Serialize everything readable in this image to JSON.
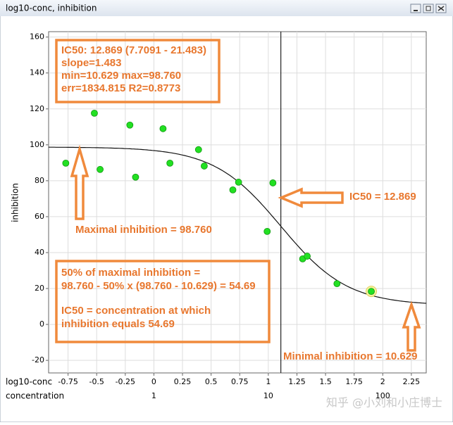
{
  "chart_data": {
    "type": "scatter",
    "title": "log10-conc, inhibition",
    "x_label": "log10-conc",
    "x2_label": "concentration",
    "y_label": "inhibition",
    "x": [
      -0.77,
      -0.52,
      -0.47,
      -0.21,
      -0.16,
      0.08,
      0.14,
      0.39,
      0.44,
      0.69,
      0.74,
      0.99,
      1.04,
      1.3,
      1.34,
      1.6,
      1.9
    ],
    "values": [
      89.8,
      117.6,
      86.3,
      111.0,
      82.0,
      109.0,
      89.8,
      97.3,
      88.2,
      74.9,
      79.2,
      51.8,
      78.8,
      36.5,
      38.0,
      22.7,
      18.4
    ],
    "color": "#22e022",
    "highlight": 16,
    "fit": {
      "ic50": 12.869,
      "slope": 1.483,
      "min": 10.629,
      "max": 98.76
    },
    "xlim": [
      -0.92,
      2.38
    ],
    "ylim": [
      -27,
      163
    ],
    "xticks": [
      -0.75,
      -0.5,
      -0.25,
      0,
      0.25,
      0.5,
      0.75,
      1,
      1.25,
      1.5,
      1.75,
      2,
      2.25
    ],
    "x2ticks": [
      {
        "value": 0,
        "label": "1"
      },
      {
        "value": 1,
        "label": "10"
      },
      {
        "value": 2,
        "label": "100"
      }
    ],
    "yticks": [
      -20,
      0,
      20,
      40,
      60,
      80,
      100,
      120,
      140,
      160
    ],
    "grid": true,
    "annotations": [
      "IC50: 12.869 (7.7091 - 21.483)",
      "slope=1.483",
      "min=10.629 max=98.760",
      "err=1834.815 R2=0.8773",
      "Maximal inhibition = 98.760",
      "IC50 = 12.869",
      "50% of maximal inhibition =",
      "98.760 - 50% x (98.760 - 10.629) = 54.69",
      "IC50 = concentration at which",
      "inhibition equals 54.69",
      "Minimal inhibition = 10.629"
    ],
    "watermark": "知乎 @小刘和小庄博士"
  }
}
